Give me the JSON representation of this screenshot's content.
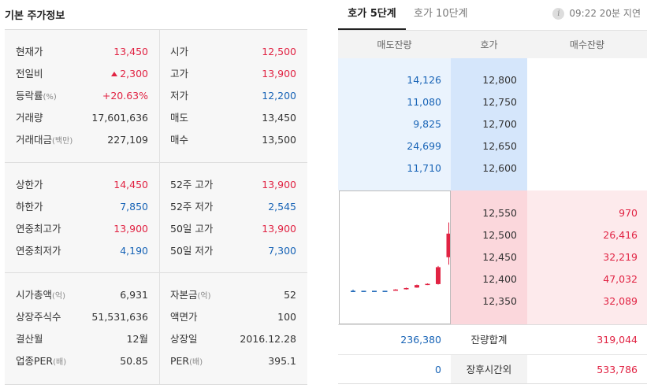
{
  "left": {
    "title": "기본 주가정보",
    "sections": [
      [
        {
          "l1": "현재가",
          "u1": "",
          "v1": "13,450",
          "c1": "red",
          "arrow": false,
          "l2": "시가",
          "u2": "",
          "v2": "12,500",
          "c2": "red"
        },
        {
          "l1": "전일비",
          "u1": "",
          "v1": "2,300",
          "c1": "red",
          "arrow": true,
          "l2": "고가",
          "u2": "",
          "v2": "13,900",
          "c2": "red"
        },
        {
          "l1": "등락률",
          "u1": "(%)",
          "v1": "+20.63%",
          "c1": "red",
          "arrow": false,
          "l2": "저가",
          "u2": "",
          "v2": "12,200",
          "c2": "blue"
        },
        {
          "l1": "거래량",
          "u1": "",
          "v1": "17,601,636",
          "c1": "dark",
          "arrow": false,
          "l2": "매도",
          "u2": "",
          "v2": "13,450",
          "c2": "dark"
        },
        {
          "l1": "거래대금",
          "u1": "(백만)",
          "v1": "227,109",
          "c1": "dark",
          "arrow": false,
          "l2": "매수",
          "u2": "",
          "v2": "13,500",
          "c2": "dark"
        }
      ],
      [
        {
          "l1": "상한가",
          "u1": "",
          "v1": "14,450",
          "c1": "red",
          "arrow": false,
          "l2": "52주 고가",
          "u2": "",
          "v2": "13,900",
          "c2": "red"
        },
        {
          "l1": "하한가",
          "u1": "",
          "v1": "7,850",
          "c1": "blue",
          "arrow": false,
          "l2": "52주 저가",
          "u2": "",
          "v2": "2,545",
          "c2": "blue"
        },
        {
          "l1": "연중최고가",
          "u1": "",
          "v1": "13,900",
          "c1": "red",
          "arrow": false,
          "l2": "50일 고가",
          "u2": "",
          "v2": "13,900",
          "c2": "red"
        },
        {
          "l1": "연중최저가",
          "u1": "",
          "v1": "4,190",
          "c1": "blue",
          "arrow": false,
          "l2": "50일 저가",
          "u2": "",
          "v2": "7,300",
          "c2": "blue"
        }
      ],
      [
        {
          "l1": "시가총액",
          "u1": "(억)",
          "v1": "6,931",
          "c1": "dark",
          "arrow": false,
          "l2": "자본금",
          "u2": "(억)",
          "v2": "52",
          "c2": "dark"
        },
        {
          "l1": "상장주식수",
          "u1": "",
          "v1": "51,531,636",
          "c1": "dark",
          "arrow": false,
          "l2": "액면가",
          "u2": "",
          "v2": "100",
          "c2": "dark"
        },
        {
          "l1": "결산월",
          "u1": "",
          "v1": "12월",
          "c1": "dark",
          "arrow": false,
          "l2": "상장일",
          "u2": "",
          "v2": "2016.12.28",
          "c2": "dark"
        },
        {
          "l1": "업종PER",
          "u1": "(배)",
          "v1": "50.85",
          "c1": "dark",
          "arrow": false,
          "l2": "PER",
          "u2": "(배)",
          "v2": "395.1",
          "c2": "dark"
        }
      ]
    ]
  },
  "right": {
    "tabs": [
      "호가 5단계",
      "호가 10단계"
    ],
    "info_icon": "info-icon",
    "info_glyph": "i",
    "delay_text": "09:22 20분 지연",
    "headers": {
      "ask": "매도잔량",
      "price": "호가",
      "bid": "매수잔량"
    },
    "asks": [
      {
        "qty": "14,126",
        "price": "12,800"
      },
      {
        "qty": "11,080",
        "price": "12,750"
      },
      {
        "qty": "9,825",
        "price": "12,700"
      },
      {
        "qty": "24,699",
        "price": "12,650"
      },
      {
        "qty": "11,710",
        "price": "12,600"
      }
    ],
    "bids": [
      {
        "price": "12,550",
        "qty": "970"
      },
      {
        "price": "12,500",
        "qty": "26,416"
      },
      {
        "price": "12,450",
        "qty": "32,219"
      },
      {
        "price": "12,400",
        "qty": "47,032"
      },
      {
        "price": "12,350",
        "qty": "32,089"
      }
    ],
    "totals": {
      "ask": "236,380",
      "label": "잔량합계",
      "bid": "319,044"
    },
    "after_hours": {
      "ask": "0",
      "label": "장후시간외",
      "bid": "533,786"
    },
    "colors": {
      "up": "#e12343",
      "down": "#1763b6"
    }
  },
  "chart_data": {
    "type": "candlestick",
    "note_series": "intraday mini chart",
    "candles": [
      {
        "open": 11150,
        "close": 11150,
        "high": 11200,
        "low": 11100
      },
      {
        "open": 11150,
        "close": 11150,
        "high": 11150,
        "low": 11150
      },
      {
        "open": 11150,
        "close": 11150,
        "high": 11150,
        "low": 11150
      },
      {
        "open": 11150,
        "close": 11150,
        "high": 11150,
        "low": 11150
      },
      {
        "open": 11170,
        "close": 11200,
        "high": 11220,
        "low": 11160
      },
      {
        "open": 11210,
        "close": 11260,
        "high": 11280,
        "low": 11200
      },
      {
        "open": 11280,
        "close": 11380,
        "high": 11400,
        "low": 11270
      },
      {
        "open": 11390,
        "close": 11430,
        "high": 11450,
        "low": 11380
      },
      {
        "open": 11420,
        "close": 12100,
        "high": 12150,
        "low": 11400
      },
      {
        "open": 12500,
        "close": 13450,
        "high": 13900,
        "low": 12200
      }
    ]
  }
}
